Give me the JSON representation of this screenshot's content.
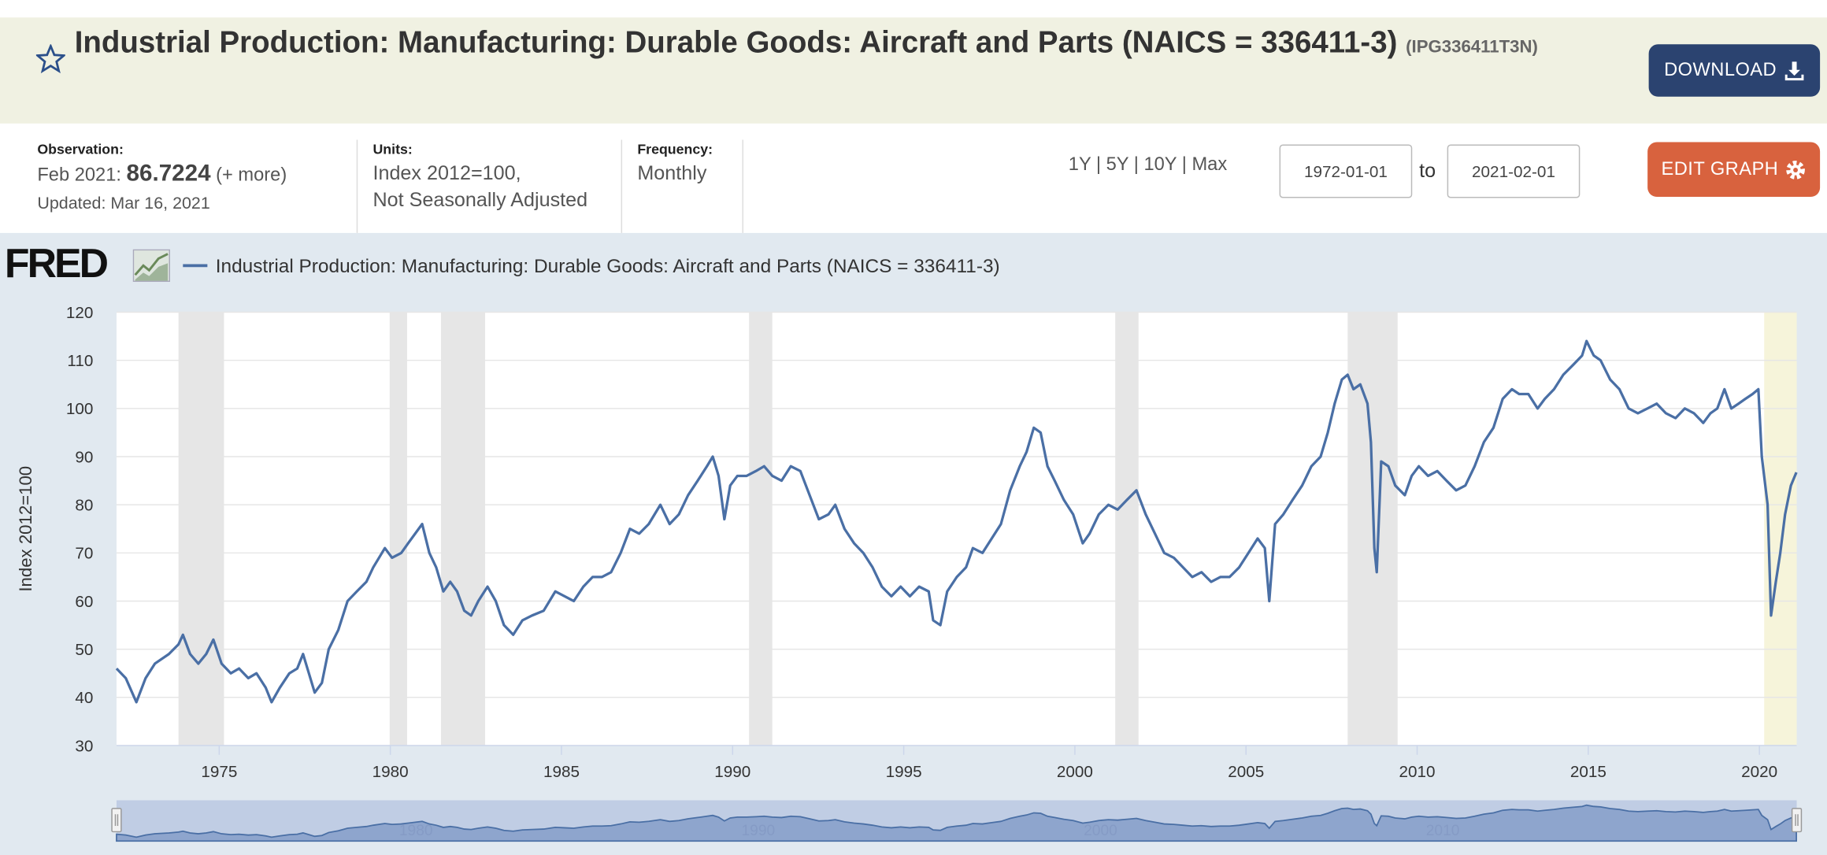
{
  "header": {
    "title": "Industrial Production: Manufacturing: Durable Goods: Aircraft and Parts (NAICS = 336411-3)",
    "series_id": "(IPG336411T3N)",
    "download": "DOWNLOAD"
  },
  "info": {
    "observation_label": "Observation:",
    "observation_date": "Feb 2021:",
    "observation_value": "86.7224",
    "more": "(+ more)",
    "updated": "Updated: Mar 16, 2021",
    "units_label": "Units:",
    "units": [
      "Index 2012=100,",
      "Not Seasonally Adjusted"
    ],
    "frequency_label": "Frequency:",
    "frequency": "Monthly"
  },
  "controls": {
    "ranges": [
      "1Y",
      "5Y",
      "10Y",
      "Max"
    ],
    "start": "1972-01-01",
    "to": "to",
    "end": "2021-02-01",
    "edit": "EDIT GRAPH"
  },
  "logo": "FRED",
  "chart_data": {
    "type": "line",
    "y_label": "Index 2012=100",
    "x": [
      1972.0,
      1972.27,
      1972.58,
      1972.85,
      1973.12,
      1973.53,
      1973.81,
      1973.94,
      1974.15,
      1974.39,
      1974.62,
      1974.83,
      1975.07,
      1975.34,
      1975.58,
      1975.85,
      1976.09,
      1976.36,
      1976.53,
      1976.77,
      1977.05,
      1977.28,
      1977.45,
      1977.62,
      1977.79,
      1978.0,
      1978.2,
      1978.48,
      1978.75,
      1979.02,
      1979.3,
      1979.5,
      1979.84,
      1980.05,
      1980.32,
      1980.52,
      1980.93,
      1981.14,
      1981.34,
      1981.55,
      1981.75,
      1981.95,
      1982.16,
      1982.36,
      1982.57,
      1982.84,
      1983.08,
      1983.32,
      1983.59,
      1983.86,
      1984.14,
      1984.48,
      1984.82,
      1985.09,
      1985.36,
      1985.64,
      1985.91,
      1986.18,
      1986.45,
      1986.73,
      1987.0,
      1987.27,
      1987.55,
      1987.89,
      1988.16,
      1988.43,
      1988.7,
      1988.98,
      1989.25,
      1989.42,
      1989.59,
      1989.76,
      1989.93,
      1990.14,
      1990.41,
      1990.68,
      1990.92,
      1991.16,
      1991.43,
      1991.7,
      1991.98,
      1992.25,
      1992.52,
      1992.8,
      1993.0,
      1993.27,
      1993.55,
      1993.82,
      1994.09,
      1994.36,
      1994.64,
      1994.91,
      1995.18,
      1995.45,
      1995.73,
      1995.86,
      1996.07,
      1996.27,
      1996.55,
      1996.82,
      1997.02,
      1997.3,
      1997.57,
      1997.84,
      1998.11,
      1998.39,
      1998.59,
      1998.8,
      1999.0,
      1999.2,
      1999.41,
      1999.68,
      1999.95,
      2000.23,
      2000.43,
      2000.7,
      2000.98,
      2001.25,
      2001.52,
      2001.8,
      2002.07,
      2002.34,
      2002.61,
      2002.89,
      2003.16,
      2003.43,
      2003.7,
      2003.98,
      2004.25,
      2004.52,
      2004.8,
      2005.07,
      2005.34,
      2005.55,
      2005.68,
      2005.85,
      2006.09,
      2006.36,
      2006.64,
      2006.91,
      2007.18,
      2007.39,
      2007.59,
      2007.8,
      2007.97,
      2008.14,
      2008.34,
      2008.55,
      2008.65,
      2008.75,
      2008.82,
      2008.95,
      2009.16,
      2009.36,
      2009.64,
      2009.84,
      2010.05,
      2010.32,
      2010.59,
      2010.86,
      2011.14,
      2011.41,
      2011.68,
      2011.95,
      2012.23,
      2012.5,
      2012.77,
      2012.98,
      2013.25,
      2013.52,
      2013.73,
      2014.0,
      2014.27,
      2014.55,
      2014.82,
      2014.95,
      2015.16,
      2015.36,
      2015.64,
      2015.91,
      2016.18,
      2016.45,
      2016.73,
      2017.0,
      2017.27,
      2017.55,
      2017.82,
      2018.09,
      2018.36,
      2018.57,
      2018.77,
      2018.98,
      2019.18,
      2019.39,
      2019.59,
      2019.8,
      2019.97,
      2020.07,
      2020.24,
      2020.34,
      2020.48,
      2020.61,
      2020.75,
      2020.92,
      2021.08
    ],
    "series": [
      {
        "name": "Industrial Production: Manufacturing: Durable Goods: Aircraft and Parts (NAICS = 336411-3)",
        "color": "#4a6fa5",
        "values": [
          46,
          44,
          39,
          44,
          47,
          49,
          51,
          53,
          49,
          47,
          49,
          52,
          47,
          45,
          46,
          44,
          45,
          42,
          39,
          42,
          45,
          46,
          49,
          45,
          41,
          43,
          50,
          54,
          60,
          62,
          64,
          67,
          71,
          69,
          70,
          72,
          76,
          70,
          67,
          62,
          64,
          62,
          58,
          57,
          60,
          63,
          60,
          55,
          53,
          56,
          57,
          58,
          62,
          61,
          60,
          63,
          65,
          65,
          66,
          70,
          75,
          74,
          76,
          80,
          76,
          78,
          82,
          85,
          88,
          90,
          86,
          77,
          84,
          86,
          86,
          87,
          88,
          86,
          85,
          88,
          87,
          82,
          77,
          78,
          80,
          75,
          72,
          70,
          67,
          63,
          61,
          63,
          61,
          63,
          62,
          56,
          55,
          62,
          65,
          67,
          71,
          70,
          73,
          76,
          83,
          88,
          91,
          96,
          95,
          88,
          85,
          81,
          78,
          72,
          74,
          78,
          80,
          79,
          81,
          83,
          78,
          74,
          70,
          69,
          67,
          65,
          66,
          64,
          65,
          65,
          67,
          70,
          73,
          71,
          60,
          76,
          78,
          81,
          84,
          88,
          90,
          95,
          101,
          106,
          107,
          104,
          105,
          101,
          93,
          71,
          66,
          89,
          88,
          84,
          82,
          86,
          88,
          86,
          87,
          85,
          83,
          84,
          88,
          93,
          96,
          102,
          104,
          103,
          103,
          100,
          102,
          104,
          107,
          109,
          111,
          114,
          111,
          110,
          106,
          104,
          100,
          99,
          100,
          101,
          99,
          98,
          100,
          99,
          97,
          99,
          100,
          104,
          100,
          101,
          102,
          103,
          104,
          90,
          80,
          57,
          64,
          70,
          78,
          84,
          86.7224
        ]
      }
    ],
    "xlim": [
      1972,
      2021.09
    ],
    "ylim": [
      30,
      120
    ],
    "yticks": [
      30,
      40,
      50,
      60,
      70,
      80,
      90,
      100,
      110,
      120
    ],
    "xticks": [
      1975,
      1980,
      1985,
      1990,
      1995,
      2000,
      2005,
      2010,
      2015,
      2020
    ],
    "grid": true,
    "recessions": [
      [
        1973.81,
        1975.14
      ],
      [
        1979.98,
        1980.49
      ],
      [
        1981.48,
        1982.77
      ],
      [
        1990.48,
        1991.16
      ],
      [
        2001.18,
        2001.86
      ],
      [
        2007.97,
        2009.43
      ]
    ],
    "recession_color": "#e6e6e6",
    "highlight": [
      2020.14,
      2021.09
    ],
    "highlight_color": "#f6f4da",
    "navigator_ticks": [
      1980,
      1990,
      2000,
      2010
    ]
  }
}
